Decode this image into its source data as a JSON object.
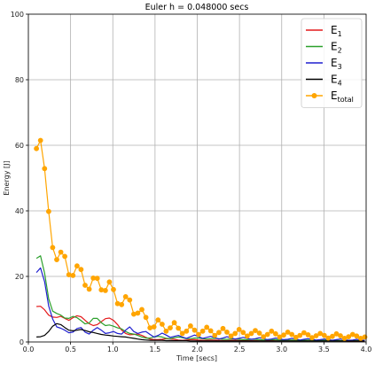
{
  "chart_data": {
    "type": "line",
    "title": "Euler h = 0.048000 secs",
    "xlabel": "Time [secs]",
    "ylabel": "Energy [J]",
    "xlim": [
      0,
      4.0
    ],
    "ylim": [
      0,
      100
    ],
    "xticks": [
      0.0,
      0.5,
      1.0,
      1.5,
      2.0,
      2.5,
      3.0,
      3.5,
      4.0
    ],
    "xtick_labels": [
      "0.0",
      "0.5",
      "1.0",
      "1.5",
      "2.0",
      "2.5",
      "3.0",
      "3.5",
      "4.0"
    ],
    "yticks": [
      0,
      20,
      40,
      60,
      80,
      100
    ],
    "ytick_labels": [
      "0",
      "20",
      "40",
      "60",
      "80",
      "100"
    ],
    "grid": true,
    "legend_position": "top-right",
    "x": [
      0.096,
      0.144,
      0.192,
      0.24,
      0.288,
      0.336,
      0.384,
      0.432,
      0.48,
      0.528,
      0.576,
      0.624,
      0.672,
      0.72,
      0.768,
      0.816,
      0.864,
      0.912,
      0.96,
      1.008,
      1.056,
      1.104,
      1.152,
      1.2,
      1.248,
      1.296,
      1.344,
      1.392,
      1.44,
      1.488,
      1.536,
      1.584,
      1.632,
      1.68,
      1.728,
      1.776,
      1.824,
      1.872,
      1.92,
      1.968,
      2.016,
      2.064,
      2.112,
      2.16,
      2.208,
      2.256,
      2.304,
      2.352,
      2.4,
      2.448,
      2.496,
      2.544,
      2.592,
      2.64,
      2.688,
      2.736,
      2.784,
      2.832,
      2.88,
      2.928,
      2.976,
      3.024,
      3.072,
      3.12,
      3.168,
      3.216,
      3.264,
      3.312,
      3.36,
      3.408,
      3.456,
      3.504,
      3.552,
      3.6,
      3.648,
      3.696,
      3.744,
      3.792,
      3.84,
      3.888,
      3.936,
      3.984
    ],
    "series": [
      {
        "name": "E",
        "sub": "1",
        "color": "#e41a1c",
        "values": [
          10.8,
          10.9,
          9.8,
          8.2,
          7.6,
          7.5,
          7.8,
          7.2,
          6.6,
          7.4,
          8.0,
          7.7,
          6.6,
          5.6,
          5.0,
          5.3,
          6.2,
          7.1,
          7.3,
          6.6,
          5.3,
          3.6,
          2.6,
          2.2,
          2.3,
          2.4,
          2.0,
          1.4,
          0.9,
          0.7,
          0.7,
          0.8,
          1.0,
          0.9,
          0.8,
          0.6,
          0.5,
          0.6,
          0.7,
          0.7,
          0.6,
          0.5,
          0.5,
          0.6,
          0.6,
          0.5,
          0.4,
          0.4,
          0.5,
          0.5,
          0.4,
          0.4,
          0.4,
          0.4,
          0.4,
          0.3,
          0.3,
          0.4,
          0.4,
          0.3,
          0.3,
          0.3,
          0.3,
          0.3,
          0.3,
          0.3,
          0.3,
          0.3,
          0.3,
          0.3,
          0.3,
          0.3,
          0.3,
          0.3,
          0.3,
          0.3,
          0.3,
          0.2,
          0.2,
          0.2,
          0.2,
          0.2
        ]
      },
      {
        "name": "E",
        "sub": "2",
        "color": "#2ca02c",
        "values": [
          25.5,
          26.3,
          21.0,
          13.2,
          9.4,
          8.7,
          8.2,
          7.3,
          7.2,
          7.8,
          7.4,
          6.5,
          5.5,
          5.8,
          7.2,
          7.2,
          5.9,
          5.0,
          5.2,
          4.8,
          4.3,
          4.0,
          3.2,
          2.6,
          2.4,
          2.0,
          1.5,
          1.2,
          1.2,
          1.5,
          1.7,
          1.5,
          1.1,
          1.0,
          1.3,
          1.5,
          1.3,
          1.0,
          1.0,
          1.2,
          1.2,
          1.0,
          0.9,
          1.0,
          1.1,
          1.0,
          0.8,
          0.8,
          0.9,
          0.9,
          0.8,
          0.7,
          0.7,
          0.8,
          0.8,
          0.7,
          0.6,
          0.7,
          0.7,
          0.7,
          0.6,
          0.6,
          0.6,
          0.6,
          0.6,
          0.5,
          0.5,
          0.6,
          0.6,
          0.5,
          0.5,
          0.5,
          0.5,
          0.5,
          0.5,
          0.4,
          0.4,
          0.5,
          0.5,
          0.4,
          0.4,
          0.4
        ]
      },
      {
        "name": "E",
        "sub": "3",
        "color": "#1f1fcf",
        "values": [
          21.2,
          22.6,
          18.4,
          11.0,
          7.0,
          4.6,
          4.2,
          3.6,
          2.8,
          3.0,
          4.1,
          4.4,
          3.0,
          2.4,
          3.6,
          4.4,
          3.6,
          2.6,
          2.8,
          3.2,
          2.6,
          2.4,
          3.6,
          4.6,
          3.2,
          2.6,
          3.0,
          3.2,
          2.3,
          1.5,
          2.0,
          2.7,
          2.1,
          1.4,
          1.7,
          2.0,
          1.5,
          1.1,
          1.6,
          2.1,
          1.6,
          1.1,
          1.4,
          1.7,
          1.3,
          0.9,
          1.2,
          1.6,
          1.2,
          0.9,
          1.1,
          1.4,
          1.1,
          0.8,
          1.0,
          1.3,
          1.0,
          0.7,
          0.9,
          1.2,
          0.9,
          0.7,
          0.8,
          1.1,
          0.9,
          0.6,
          0.8,
          1.0,
          0.8,
          0.6,
          0.7,
          0.9,
          0.7,
          0.5,
          0.7,
          0.9,
          0.7,
          0.5,
          0.6,
          0.8,
          0.6,
          0.5
        ]
      },
      {
        "name": "E",
        "sub": "4",
        "color": "#000000",
        "values": [
          1.5,
          1.6,
          2.0,
          3.2,
          4.8,
          5.6,
          5.3,
          4.4,
          3.6,
          3.4,
          3.6,
          3.8,
          3.5,
          3.1,
          2.9,
          2.6,
          2.3,
          2.1,
          2.0,
          1.8,
          1.7,
          1.6,
          1.5,
          1.3,
          1.1,
          0.9,
          0.7,
          0.6,
          0.5,
          0.5,
          0.5,
          0.5,
          0.4,
          0.4,
          0.4,
          0.4,
          0.4,
          0.4,
          0.3,
          0.3,
          0.3,
          0.3,
          0.3,
          0.3,
          0.3,
          0.3,
          0.3,
          0.3,
          0.3,
          0.3,
          0.3,
          0.3,
          0.3,
          0.3,
          0.3,
          0.3,
          0.3,
          0.3,
          0.3,
          0.3,
          0.3,
          0.3,
          0.3,
          0.3,
          0.3,
          0.3,
          0.3,
          0.3,
          0.3,
          0.3,
          0.3,
          0.3,
          0.3,
          0.3,
          0.3,
          0.3,
          0.3,
          0.3,
          0.3,
          0.3,
          0.3,
          0.3
        ]
      },
      {
        "name": "E",
        "sub": "total",
        "color": "#ffa500",
        "marker": "circle",
        "values": [
          59.0,
          61.5,
          52.9,
          39.8,
          28.8,
          25.1,
          27.4,
          26.1,
          20.5,
          20.3,
          23.2,
          22.1,
          17.3,
          16.1,
          19.5,
          19.4,
          15.9,
          15.7,
          18.3,
          16.0,
          11.7,
          11.4,
          13.8,
          12.8,
          8.5,
          8.8,
          9.9,
          7.5,
          4.3,
          4.6,
          6.7,
          5.4,
          3.3,
          4.3,
          5.9,
          4.2,
          2.6,
          3.3,
          4.9,
          3.6,
          2.3,
          3.3,
          4.5,
          3.4,
          2.0,
          2.9,
          4.1,
          3.0,
          1.8,
          2.6,
          3.8,
          2.9,
          1.8,
          2.6,
          3.5,
          2.7,
          1.6,
          2.3,
          3.3,
          2.5,
          1.5,
          2.1,
          3.0,
          2.3,
          1.4,
          2.0,
          2.8,
          2.2,
          1.3,
          1.9,
          2.6,
          2.0,
          1.2,
          1.7,
          2.5,
          1.9,
          1.1,
          1.6,
          2.3,
          1.8,
          1.1,
          1.5
        ]
      }
    ]
  }
}
